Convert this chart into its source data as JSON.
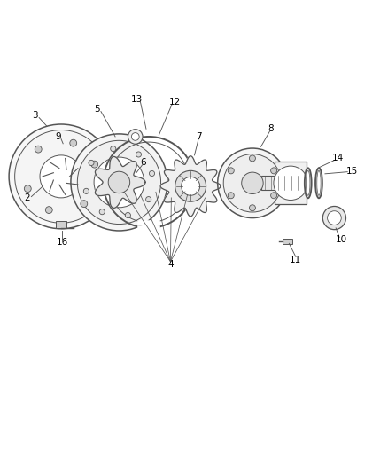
{
  "bg_color": "#ffffff",
  "line_color": "#555555",
  "label_color": "#000000",
  "figsize": [
    4.39,
    5.33
  ],
  "dpi": 100
}
